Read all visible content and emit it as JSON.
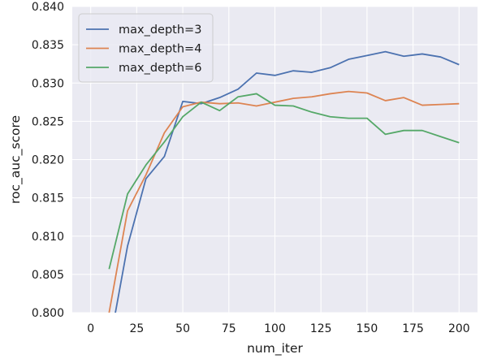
{
  "chart_data": {
    "type": "line",
    "xlabel": "num_iter",
    "ylabel": "roc_auc_score",
    "xlim": [
      -10,
      210
    ],
    "ylim": [
      0.8,
      0.84
    ],
    "xticks": [
      0,
      25,
      50,
      75,
      100,
      125,
      150,
      175,
      200
    ],
    "yticks": [
      0.8,
      0.805,
      0.81,
      0.815,
      0.82,
      0.825,
      0.83,
      0.835,
      0.84
    ],
    "ytick_labels": [
      "0.800",
      "0.805",
      "0.810",
      "0.815",
      "0.820",
      "0.825",
      "0.830",
      "0.835",
      "0.840"
    ],
    "grid": true,
    "background": "#eaeaf2",
    "legend_position": "top-left",
    "x": [
      10,
      20,
      30,
      40,
      50,
      60,
      70,
      80,
      90,
      100,
      110,
      120,
      130,
      140,
      150,
      160,
      170,
      180,
      190,
      200
    ],
    "series": [
      {
        "name": "max_depth=3",
        "color": "#4c72b0",
        "values": [
          0.7955,
          0.8087,
          0.8175,
          0.8204,
          0.8276,
          0.8273,
          0.8281,
          0.8292,
          0.8313,
          0.831,
          0.8316,
          0.8314,
          0.832,
          0.8331,
          0.8336,
          0.8341,
          0.8335,
          0.8338,
          0.8334,
          0.8324
        ]
      },
      {
        "name": "max_depth=4",
        "color": "#dd8452",
        "values": [
          0.8,
          0.8133,
          0.818,
          0.8235,
          0.8269,
          0.8275,
          0.8273,
          0.8274,
          0.827,
          0.8275,
          0.828,
          0.8282,
          0.8286,
          0.8289,
          0.8287,
          0.8277,
          0.8281,
          0.8271,
          0.8272,
          0.8273
        ]
      },
      {
        "name": "max_depth=6",
        "color": "#55a868",
        "values": [
          0.8057,
          0.8155,
          0.8193,
          0.8223,
          0.8256,
          0.8275,
          0.8264,
          0.8282,
          0.8286,
          0.8271,
          0.827,
          0.8262,
          0.8256,
          0.8254,
          0.8254,
          0.8233,
          0.8238,
          0.8238,
          0.823,
          0.8222
        ]
      }
    ]
  }
}
